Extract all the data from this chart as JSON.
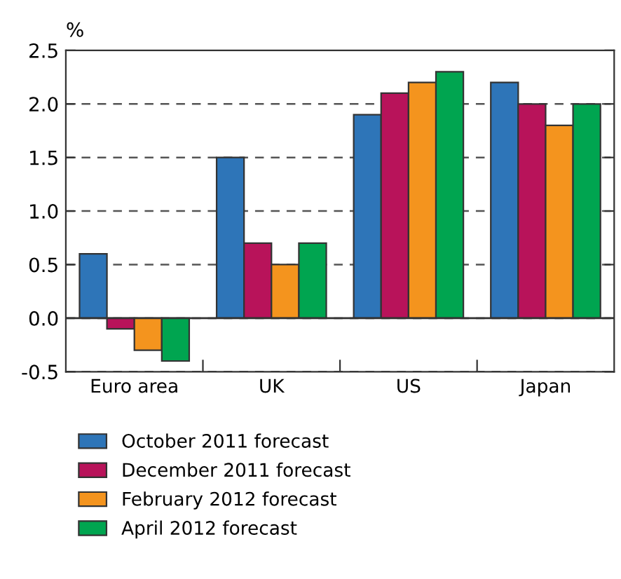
{
  "chart_data": {
    "type": "bar",
    "ylabel": "%",
    "categories": [
      "Euro area",
      "UK",
      "US",
      "Japan"
    ],
    "series": [
      {
        "name": "October 2011 forecast",
        "color": "#2e75b8",
        "values": [
          0.6,
          1.5,
          1.9,
          2.2
        ]
      },
      {
        "name": "December 2011 forecast",
        "color": "#b8135a",
        "values": [
          -0.1,
          0.7,
          2.1,
          2.0
        ]
      },
      {
        "name": "February 2012 forecast",
        "color": "#f4941e",
        "values": [
          -0.3,
          0.5,
          2.2,
          1.8
        ]
      },
      {
        "name": "April 2012 forecast",
        "color": "#00a550",
        "values": [
          -0.4,
          0.7,
          2.3,
          2.0
        ]
      }
    ],
    "ylim": [
      -0.5,
      2.5
    ],
    "yticks": [
      {
        "value": -0.5,
        "label": "-0.5"
      },
      {
        "value": 0,
        "label": "0.0"
      },
      {
        "value": 0.5,
        "label": "0.5"
      },
      {
        "value": 1,
        "label": "1.0"
      },
      {
        "value": 1.5,
        "label": "1.5"
      },
      {
        "value": 2,
        "label": "2.0"
      },
      {
        "value": 2.5,
        "label": "2.5"
      }
    ],
    "grid": "y",
    "legend": "bottom"
  }
}
